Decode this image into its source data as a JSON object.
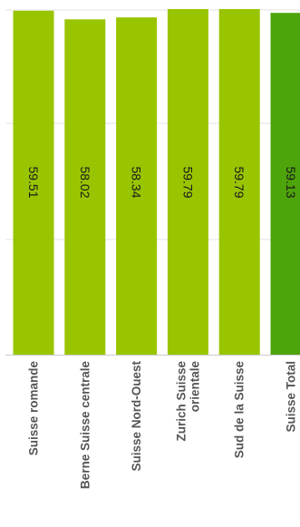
{
  "chart_data": {
    "type": "bar",
    "categories": [
      "Suisse romande",
      "Berne Suisse centrale",
      "Suisse Nord-Ouest",
      "Zurich Suisse orientale",
      "Sud de la Suisse",
      "Suisse Total"
    ],
    "category_lines": [
      [
        "Suisse romande"
      ],
      [
        "Berne Suisse centrale"
      ],
      [
        "Suisse Nord-Ouest"
      ],
      [
        "Zurich Suisse",
        "orientale"
      ],
      [
        "Sud de la Suisse"
      ],
      [
        "Suisse Total"
      ]
    ],
    "values": [
      59.51,
      58.02,
      58.34,
      59.79,
      59.79,
      59.13
    ],
    "value_labels": [
      "59.51",
      "58.02",
      "58.34",
      "59.79",
      "59.79",
      "59.13"
    ],
    "ylim": [
      0,
      59.79
    ],
    "grid": true,
    "legend": "none",
    "colors": {
      "bar": "#99c400",
      "total_bar": "#4ea40b",
      "grid": "#e3e3e3",
      "axis": "#cccccc",
      "value_text": "#1a1a1a",
      "category_text": "#555555"
    },
    "highlight_index": 5
  }
}
